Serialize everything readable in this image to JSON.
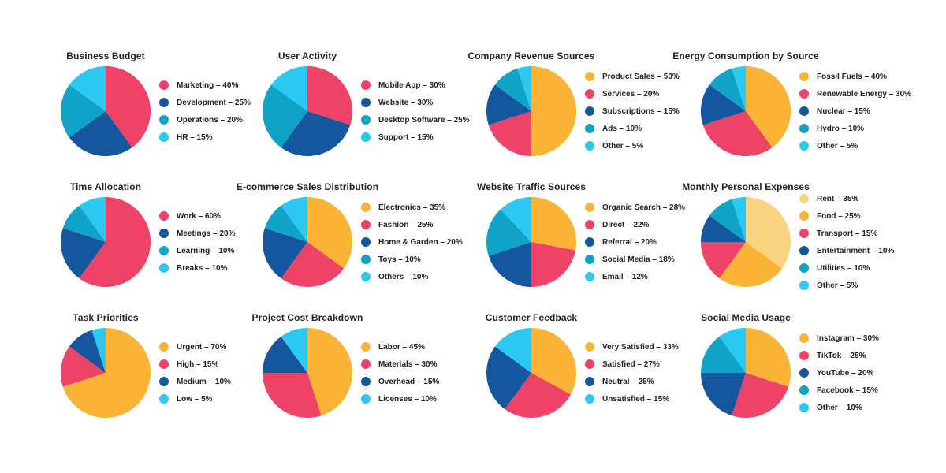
{
  "page": {
    "background_color": "#ffffff",
    "text_color": "#232126",
    "description": "Grid of twelve pie chart infographics, four columns by three rows"
  },
  "palette": {
    "pink": "#EE4266",
    "dark_blue": "#14579F",
    "teal": "#0FA3C7",
    "cyan": "#2BC9F2",
    "yellow": "#FAB334",
    "light_yellow": "#FBD481"
  },
  "chart_data": [
    {
      "type": "pie",
      "title": "Business Budget",
      "legend_position": "right",
      "segments": [
        {
          "label": "Marketing",
          "value": 40,
          "color": "#EE4266",
          "legend_text": "Marketing – 40%"
        },
        {
          "label": "Development",
          "value": 25,
          "color": "#14579F",
          "legend_text": "Development – 25%"
        },
        {
          "label": "Operations",
          "value": 20,
          "color": "#0FA3C7",
          "legend_text": "Operations – 20%"
        },
        {
          "label": "HR",
          "value": 15,
          "color": "#2BC9F2",
          "legend_text": "HR – 15%"
        }
      ]
    },
    {
      "type": "pie",
      "title": "User Activity",
      "legend_position": "right",
      "segments": [
        {
          "label": "Mobile App",
          "value": 30,
          "color": "#EE4266",
          "legend_text": "Mobile App – 30%"
        },
        {
          "label": "Website",
          "value": 30,
          "color": "#14579F",
          "legend_text": "Website – 30%"
        },
        {
          "label": "Desktop Software",
          "value": 25,
          "color": "#0FA3C7",
          "legend_text": "Desktop Software – 25%"
        },
        {
          "label": "Support",
          "value": 15,
          "color": "#2BC9F2",
          "legend_text": "Support – 15%"
        }
      ]
    },
    {
      "type": "pie",
      "title": "Company Revenue Sources",
      "legend_position": "right",
      "segments": [
        {
          "label": "Product Sales",
          "value": 50,
          "color": "#FAB334",
          "legend_text": "Product Sales – 50%"
        },
        {
          "label": "Services",
          "value": 20,
          "color": "#EE4266",
          "legend_text": "Services – 20%"
        },
        {
          "label": "Subscriptions",
          "value": 15,
          "color": "#14579F",
          "legend_text": "Subscriptions – 15%"
        },
        {
          "label": "Ads",
          "value": 10,
          "color": "#0FA3C7",
          "legend_text": "Ads – 10%"
        },
        {
          "label": "Other",
          "value": 5,
          "color": "#2BC9F2",
          "legend_text": "Other – 5%"
        }
      ]
    },
    {
      "type": "pie",
      "title": "Energy Consumption by Source",
      "legend_position": "right",
      "segments": [
        {
          "label": "Fossil Fuels",
          "value": 40,
          "color": "#FAB334",
          "legend_text": "Fossil Fuels – 40%"
        },
        {
          "label": "Renewable Energy",
          "value": 30,
          "color": "#EE4266",
          "legend_text": "Renewable Energy – 30%"
        },
        {
          "label": "Nuclear",
          "value": 15,
          "color": "#14579F",
          "legend_text": "Nuclear – 15%"
        },
        {
          "label": "Hydro",
          "value": 10,
          "color": "#0FA3C7",
          "legend_text": "Hydro – 10%"
        },
        {
          "label": "Other",
          "value": 5,
          "color": "#2BC9F2",
          "legend_text": "Other – 5%"
        }
      ]
    },
    {
      "type": "pie",
      "title": "Time Allocation",
      "legend_position": "right",
      "segments": [
        {
          "label": "Work",
          "value": 60,
          "color": "#EE4266",
          "legend_text": "Work – 60%"
        },
        {
          "label": "Meetings",
          "value": 20,
          "color": "#14579F",
          "legend_text": "Meetings – 20%"
        },
        {
          "label": "Learning",
          "value": 10,
          "color": "#0FA3C7",
          "legend_text": "Learning – 10%"
        },
        {
          "label": "Breaks",
          "value": 10,
          "color": "#2BC9F2",
          "legend_text": "Breaks – 10%"
        }
      ]
    },
    {
      "type": "pie",
      "title": "E-commerce Sales Distribution",
      "legend_position": "right",
      "segments": [
        {
          "label": "Electronics",
          "value": 35,
          "color": "#FAB334",
          "legend_text": "Electronics – 35%"
        },
        {
          "label": "Fashion",
          "value": 25,
          "color": "#EE4266",
          "legend_text": "Fashion – 25%"
        },
        {
          "label": "Home & Garden",
          "value": 20,
          "color": "#14579F",
          "legend_text": "Home & Garden – 20%"
        },
        {
          "label": "Toys",
          "value": 10,
          "color": "#0FA3C7",
          "legend_text": "Toys – 10%"
        },
        {
          "label": "Others",
          "value": 10,
          "color": "#2BC9F2",
          "legend_text": "Others – 10%"
        }
      ]
    },
    {
      "type": "pie",
      "title": "Website Traffic Sources",
      "legend_position": "right",
      "segments": [
        {
          "label": "Organic Search",
          "value": 28,
          "color": "#FAB334",
          "legend_text": "Organic Search – 28%"
        },
        {
          "label": "Direct",
          "value": 22,
          "color": "#EE4266",
          "legend_text": "Direct – 22%"
        },
        {
          "label": "Referral",
          "value": 20,
          "color": "#14579F",
          "legend_text": "Referral – 20%"
        },
        {
          "label": "Social Media",
          "value": 18,
          "color": "#0FA3C7",
          "legend_text": "Social Media – 18%"
        },
        {
          "label": "Email",
          "value": 12,
          "color": "#2BC9F2",
          "legend_text": "Email – 12%"
        }
      ]
    },
    {
      "type": "pie",
      "title": "Monthly Personal Expenses",
      "legend_position": "right",
      "segments": [
        {
          "label": "Rent",
          "value": 35,
          "color": "#FBD481",
          "legend_text": "Rent – 35%"
        },
        {
          "label": "Food",
          "value": 25,
          "color": "#FAB334",
          "legend_text": "Food – 25%"
        },
        {
          "label": "Transport",
          "value": 15,
          "color": "#EE4266",
          "legend_text": "Transport – 15%"
        },
        {
          "label": "Entertainment",
          "value": 10,
          "color": "#14579F",
          "legend_text": "Entertainment – 10%"
        },
        {
          "label": "Utilities",
          "value": 10,
          "color": "#0FA3C7",
          "legend_text": "Utilities – 10%"
        },
        {
          "label": "Other",
          "value": 5,
          "color": "#2BC9F2",
          "legend_text": "Other – 5%"
        }
      ]
    },
    {
      "type": "pie",
      "title": "Task Priorities",
      "legend_position": "right",
      "segments": [
        {
          "label": "Urgent",
          "value": 70,
          "color": "#FAB334",
          "legend_text": "Urgent – 70%"
        },
        {
          "label": "High",
          "value": 15,
          "color": "#EE4266",
          "legend_text": "High – 15%"
        },
        {
          "label": "Medium",
          "value": 10,
          "color": "#14579F",
          "legend_text": "Medium – 10%"
        },
        {
          "label": "Low",
          "value": 5,
          "color": "#2BC9F2",
          "legend_text": "Low – 5%"
        }
      ]
    },
    {
      "type": "pie",
      "title": "Project Cost Breakdown",
      "legend_position": "right",
      "segments": [
        {
          "label": "Labor",
          "value": 45,
          "color": "#FAB334",
          "legend_text": "Labor – 45%"
        },
        {
          "label": "Materials",
          "value": 30,
          "color": "#EE4266",
          "legend_text": "Materials – 30%"
        },
        {
          "label": "Overhead",
          "value": 15,
          "color": "#14579F",
          "legend_text": "Overhead – 15%"
        },
        {
          "label": "Licenses",
          "value": 10,
          "color": "#2BC9F2",
          "legend_text": "Licenses – 10%"
        }
      ]
    },
    {
      "type": "pie",
      "title": "Customer Feedback",
      "legend_position": "right",
      "segments": [
        {
          "label": "Very Satisfied",
          "value": 33,
          "color": "#FAB334",
          "legend_text": "Very Satisfied – 33%"
        },
        {
          "label": "Satisfied",
          "value": 27,
          "color": "#EE4266",
          "legend_text": "Satisfied – 27%"
        },
        {
          "label": "Neutral",
          "value": 25,
          "color": "#14579F",
          "legend_text": "Neutral – 25%"
        },
        {
          "label": "Unsatisfied",
          "value": 15,
          "color": "#2BC9F2",
          "legend_text": "Unsatisfied – 15%"
        }
      ]
    },
    {
      "type": "pie",
      "title": "Social Media Usage",
      "legend_position": "right",
      "segments": [
        {
          "label": "Instagram",
          "value": 30,
          "color": "#FAB334",
          "legend_text": "Instagram – 30%"
        },
        {
          "label": "TikTok",
          "value": 25,
          "color": "#EE4266",
          "legend_text": "TikTok – 25%"
        },
        {
          "label": "YouTube",
          "value": 20,
          "color": "#14579F",
          "legend_text": "YouTube – 20%"
        },
        {
          "label": "Facebook",
          "value": 15,
          "color": "#0FA3C7",
          "legend_text": "Facebook – 15%"
        },
        {
          "label": "Other",
          "value": 10,
          "color": "#2BC9F2",
          "legend_text": "Other – 10%"
        }
      ]
    }
  ]
}
